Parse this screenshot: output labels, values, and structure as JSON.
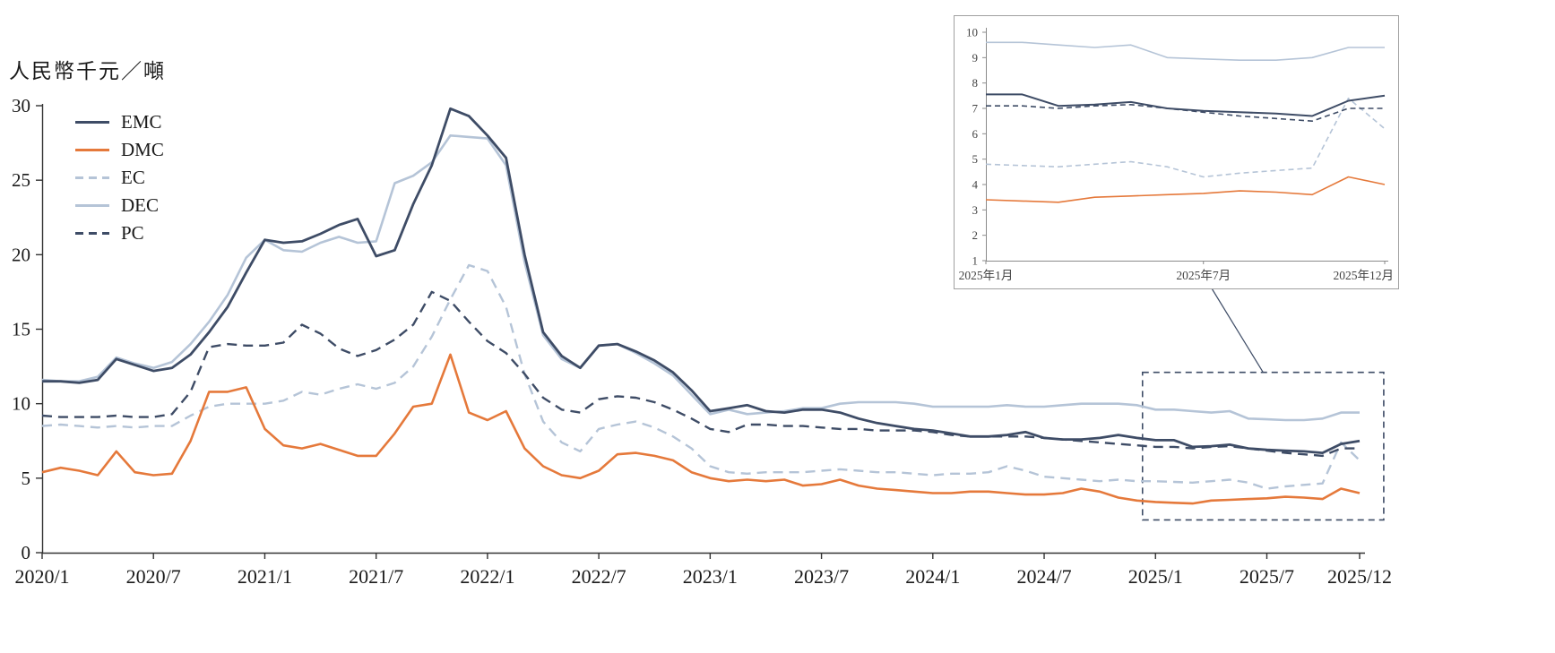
{
  "colors": {
    "navy": "#3e4c66",
    "orange": "#e5793b",
    "lightblue": "#b5c4d7",
    "text": "#1a1a1a",
    "axis": "#333333",
    "inset_border": "#a0a0a0",
    "inset_axis": "#8a8a8a"
  },
  "chart_data": {
    "type": "line",
    "ylabel": "人民幣千元／噸",
    "ylim": [
      0,
      30
    ],
    "yticks": [
      0,
      5,
      10,
      15,
      20,
      25,
      30
    ],
    "months_total": 71,
    "x_start": "2020/1",
    "x_end": "2025/12",
    "grid": "off",
    "legend_position": "top-left-inside",
    "xticks": [
      {
        "label": "2020/1",
        "m": 0
      },
      {
        "label": "2020/7",
        "m": 6
      },
      {
        "label": "2021/1",
        "m": 12
      },
      {
        "label": "2021/7",
        "m": 18
      },
      {
        "label": "2022/1",
        "m": 24
      },
      {
        "label": "2022/7",
        "m": 30
      },
      {
        "label": "2023/1",
        "m": 36
      },
      {
        "label": "2023/7",
        "m": 42
      },
      {
        "label": "2024/1",
        "m": 48
      },
      {
        "label": "2024/7",
        "m": 54
      },
      {
        "label": "2025/1",
        "m": 60
      },
      {
        "label": "2025/7",
        "m": 66
      },
      {
        "label": "2025/12",
        "m": 71
      }
    ],
    "series": [
      {
        "name": "EMC",
        "color": "#3e4c66",
        "style": "solid",
        "values": [
          11.5,
          11.5,
          11.4,
          11.6,
          13.0,
          12.6,
          12.2,
          12.4,
          13.3,
          14.8,
          16.5,
          18.8,
          21.0,
          20.8,
          20.9,
          21.4,
          22.0,
          22.4,
          19.9,
          20.3,
          23.4,
          26.0,
          29.8,
          29.3,
          28.0,
          26.5,
          20.0,
          14.8,
          13.2,
          12.4,
          13.9,
          14.0,
          13.5,
          12.9,
          12.1,
          10.9,
          9.5,
          9.7,
          9.9,
          9.5,
          9.4,
          9.6,
          9.6,
          9.4,
          9.0,
          8.7,
          8.5,
          8.3,
          8.2,
          8.0,
          7.8,
          7.8,
          7.9,
          8.1,
          7.7,
          7.6,
          7.6,
          7.7,
          7.9,
          7.7,
          7.55,
          7.55,
          7.1,
          7.15,
          7.25,
          7.0,
          6.9,
          6.85,
          6.8,
          6.7,
          7.3,
          7.5
        ]
      },
      {
        "name": "DMC",
        "color": "#e5793b",
        "style": "solid",
        "values": [
          5.4,
          5.7,
          5.5,
          5.2,
          6.8,
          5.4,
          5.2,
          5.3,
          7.5,
          10.8,
          10.8,
          11.1,
          8.3,
          7.2,
          7.0,
          7.3,
          6.9,
          6.5,
          6.5,
          8.0,
          9.8,
          10.0,
          13.3,
          9.4,
          8.9,
          9.5,
          7.0,
          5.8,
          5.2,
          5.0,
          5.5,
          6.6,
          6.7,
          6.5,
          6.2,
          5.4,
          5.0,
          4.8,
          4.9,
          4.8,
          4.9,
          4.5,
          4.6,
          4.9,
          4.5,
          4.3,
          4.2,
          4.1,
          4.0,
          4.0,
          4.1,
          4.1,
          4.0,
          3.9,
          3.9,
          4.0,
          4.3,
          4.1,
          3.7,
          3.5,
          3.4,
          3.35,
          3.3,
          3.5,
          3.55,
          3.6,
          3.65,
          3.75,
          3.7,
          3.6,
          4.3,
          4.0
        ]
      },
      {
        "name": "EC",
        "color": "#b5c4d7",
        "style": "dashed",
        "values": [
          8.5,
          8.6,
          8.5,
          8.4,
          8.5,
          8.4,
          8.5,
          8.5,
          9.2,
          9.8,
          10.0,
          10.0,
          10.0,
          10.2,
          10.8,
          10.6,
          11.0,
          11.3,
          11.0,
          11.4,
          12.5,
          14.5,
          17.0,
          19.3,
          18.9,
          16.5,
          12.0,
          8.8,
          7.4,
          6.8,
          8.3,
          8.6,
          8.8,
          8.4,
          7.8,
          7.0,
          5.8,
          5.4,
          5.3,
          5.4,
          5.4,
          5.4,
          5.5,
          5.6,
          5.5,
          5.4,
          5.4,
          5.3,
          5.2,
          5.3,
          5.3,
          5.4,
          5.8,
          5.5,
          5.1,
          5.0,
          4.9,
          4.8,
          4.9,
          4.8,
          4.8,
          4.75,
          4.7,
          4.8,
          4.9,
          4.7,
          4.3,
          4.45,
          4.55,
          4.65,
          7.4,
          6.2
        ]
      },
      {
        "name": "DEC",
        "color": "#b5c4d7",
        "style": "solid",
        "values": [
          11.6,
          11.5,
          11.5,
          11.8,
          13.1,
          12.7,
          12.4,
          12.8,
          14.0,
          15.5,
          17.3,
          19.8,
          21.0,
          20.3,
          20.2,
          20.8,
          21.2,
          20.8,
          20.9,
          24.8,
          25.3,
          26.2,
          28.0,
          27.9,
          27.8,
          26.0,
          19.5,
          14.6,
          13.0,
          12.4,
          13.9,
          14.0,
          13.4,
          12.7,
          11.9,
          10.6,
          9.3,
          9.6,
          9.3,
          9.4,
          9.5,
          9.7,
          9.7,
          10.0,
          10.1,
          10.1,
          10.1,
          10.0,
          9.8,
          9.8,
          9.8,
          9.8,
          9.9,
          9.8,
          9.8,
          9.9,
          10.0,
          10.0,
          10.0,
          9.9,
          9.6,
          9.6,
          9.5,
          9.4,
          9.5,
          9.0,
          8.95,
          8.9,
          8.9,
          9.0,
          9.4,
          9.4
        ]
      },
      {
        "name": "PC",
        "color": "#3e4c66",
        "style": "dashed",
        "values": [
          9.2,
          9.1,
          9.1,
          9.1,
          9.2,
          9.1,
          9.1,
          9.3,
          10.8,
          13.8,
          14.0,
          13.9,
          13.9,
          14.1,
          15.3,
          14.7,
          13.7,
          13.2,
          13.6,
          14.3,
          15.3,
          17.5,
          16.9,
          15.5,
          14.2,
          13.4,
          12.0,
          10.4,
          9.6,
          9.4,
          10.3,
          10.5,
          10.4,
          10.1,
          9.6,
          9.0,
          8.3,
          8.1,
          8.6,
          8.6,
          8.5,
          8.5,
          8.4,
          8.3,
          8.3,
          8.2,
          8.2,
          8.2,
          8.1,
          7.9,
          7.8,
          7.8,
          7.8,
          7.8,
          7.7,
          7.6,
          7.5,
          7.4,
          7.3,
          7.2,
          7.1,
          7.1,
          7.0,
          7.1,
          7.15,
          7.0,
          6.85,
          6.7,
          6.6,
          6.5,
          7.0,
          7.0
        ]
      }
    ],
    "inset": {
      "description": "zoom of last 12 months (2025)",
      "ylim": [
        1,
        10
      ],
      "yticks": [
        1,
        2,
        3,
        4,
        5,
        6,
        7,
        8,
        9,
        10
      ],
      "source_last_n_months": 12,
      "xticks": [
        {
          "label": "2025年1月",
          "m": 0
        },
        {
          "label": "2025年7月",
          "m": 6
        },
        {
          "label": "2025年12月",
          "m": 11
        }
      ]
    },
    "zoom_box": {
      "month_start": 59.3,
      "month_end": 72.3,
      "value_top": 12.1,
      "value_bottom": 2.2
    }
  }
}
